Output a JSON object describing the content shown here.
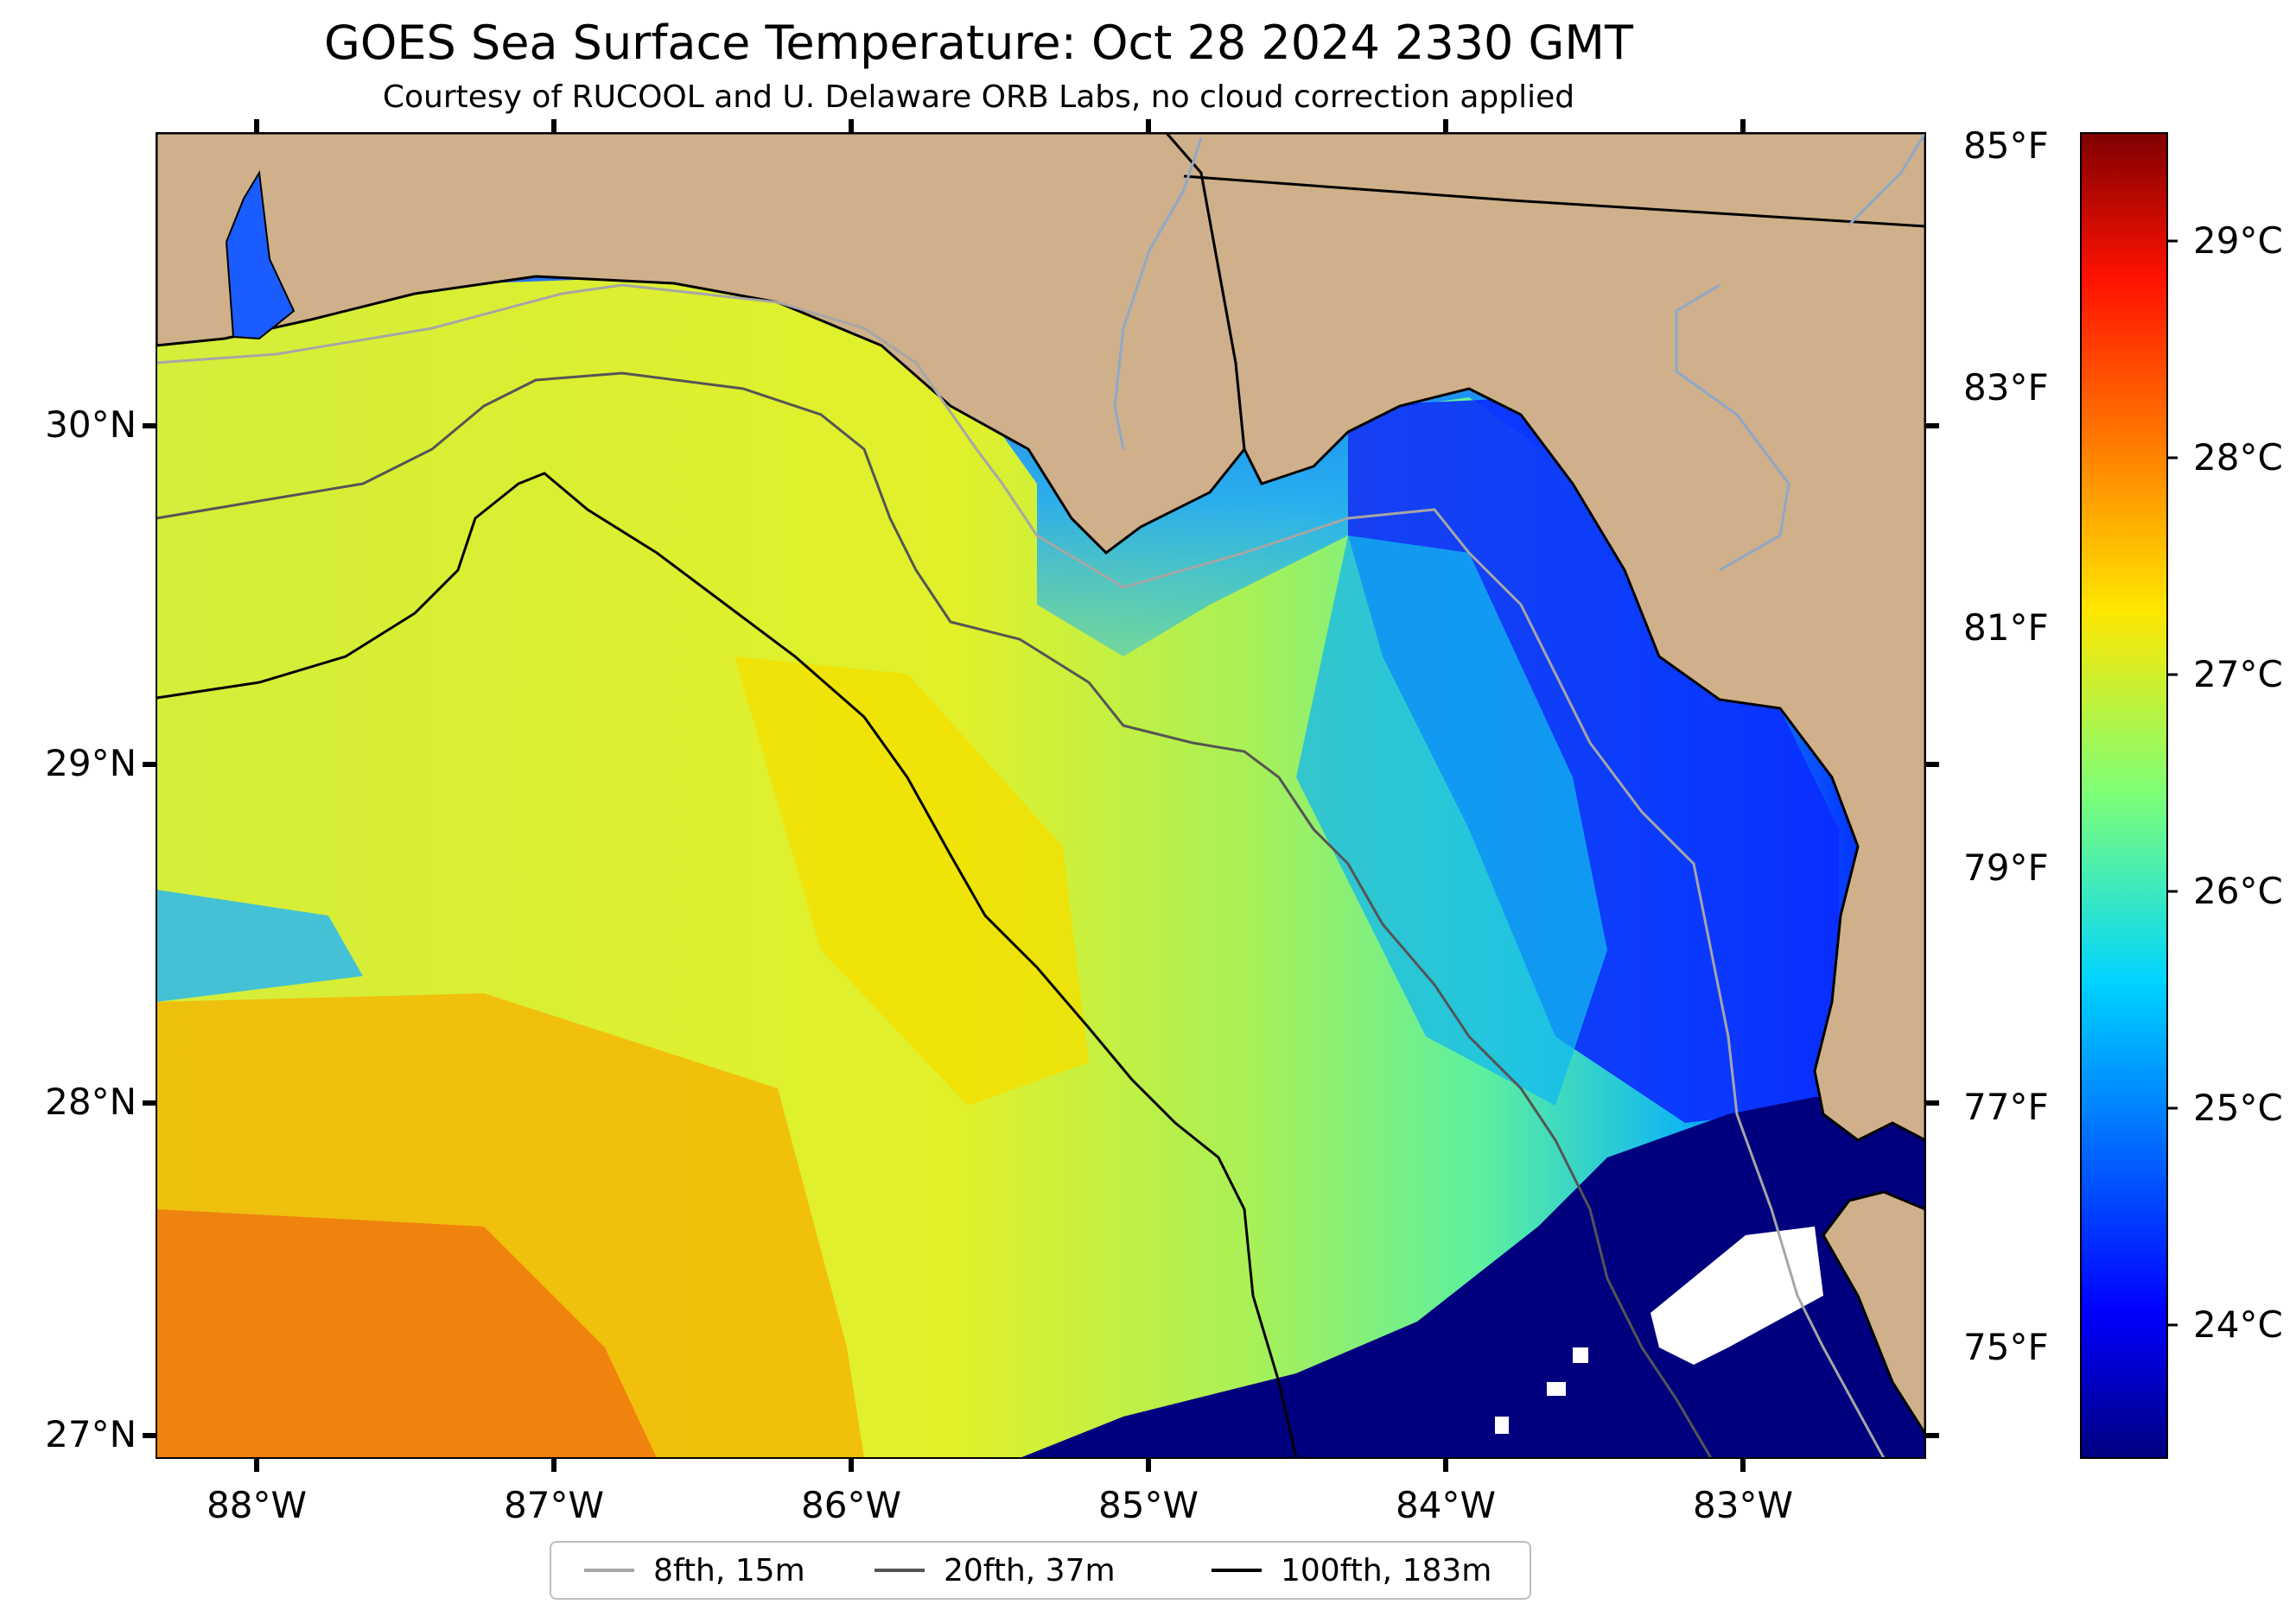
{
  "title": "GOES Sea Surface Temperature: Oct 28 2024 2330 GMT",
  "subtitle": "Courtesy of RUCOOL and U. Delaware ORB Labs, no cloud correction applied",
  "map": {
    "region": "Eastern Gulf of Mexico / Florida Big Bend",
    "lat_labels": [
      "30°N",
      "29°N",
      "28°N",
      "27°N"
    ],
    "lon_labels": [
      "88°W",
      "87°W",
      "86°W",
      "85°W",
      "84°W",
      "83°W"
    ],
    "colors": {
      "land": "#cfb08a",
      "coast": "#000000",
      "river": "#8fa8c8",
      "no_data": "#ffffff",
      "cold_water": "#00007f"
    }
  },
  "colorbar": {
    "colormap": "jet",
    "fahrenheit_labels": [
      "85°F",
      "83°F",
      "81°F",
      "79°F",
      "77°F",
      "75°F"
    ],
    "celsius_labels": [
      "29°C",
      "28°C",
      "27°C",
      "26°C",
      "25°C",
      "24°C"
    ]
  },
  "legend": [
    {
      "label": "8fth, 15m",
      "color": "#a6a6a6"
    },
    {
      "label": "20fth, 37m",
      "color": "#555555"
    },
    {
      "label": "100fth, 183m",
      "color": "#000000"
    }
  ]
}
